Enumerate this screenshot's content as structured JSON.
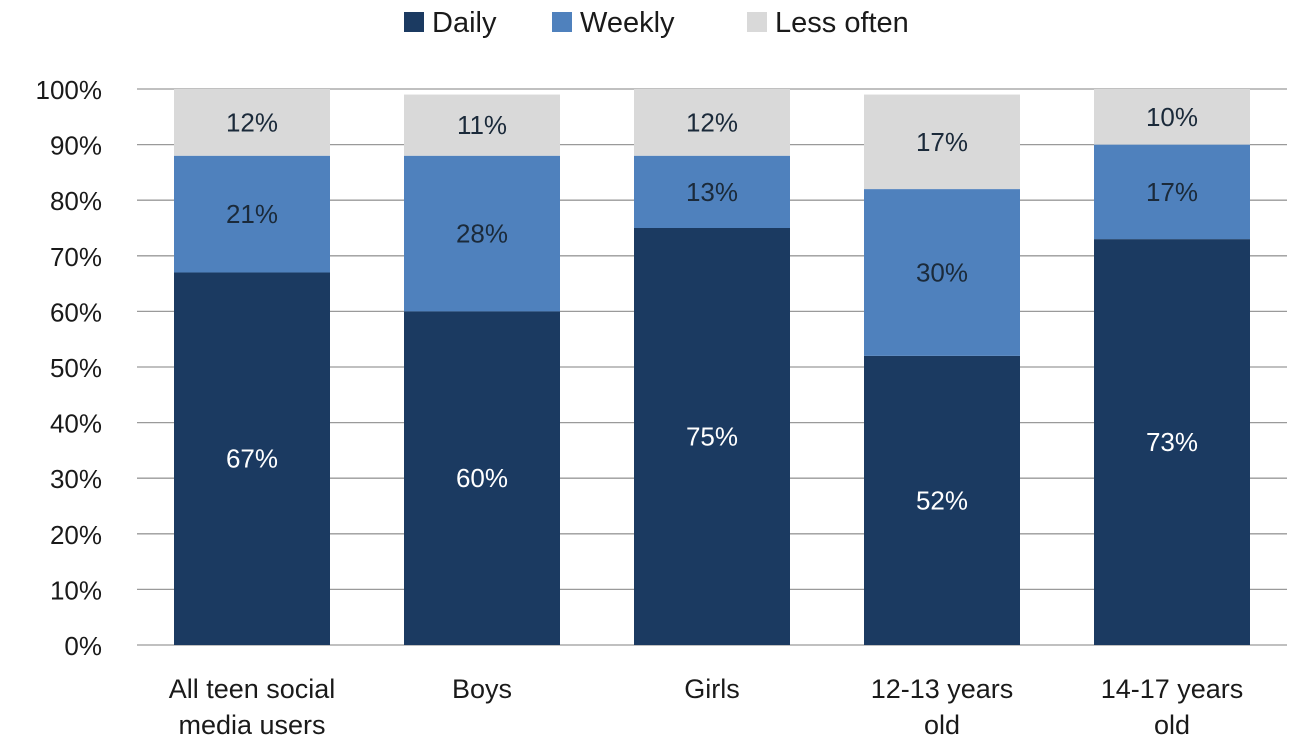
{
  "chart_data": {
    "type": "bar",
    "stacked": true,
    "categories": [
      [
        "All teen social",
        "media users"
      ],
      [
        "Boys"
      ],
      [
        "Girls"
      ],
      [
        "12-13 years",
        "old"
      ],
      [
        "14-17 years",
        "old"
      ]
    ],
    "series": [
      {
        "name": "Daily",
        "color": "#1b3a61",
        "label_color": "#ffffff",
        "values": [
          67,
          60,
          75,
          52,
          73
        ],
        "labels": [
          "67%",
          "60%",
          "75%",
          "52%",
          "73%"
        ]
      },
      {
        "name": "Weekly",
        "color": "#4f81bd",
        "label_color": "#1b2a3a",
        "values": [
          21,
          28,
          13,
          30,
          17
        ],
        "labels": [
          "21%",
          "28%",
          "13%",
          "30%",
          "17%"
        ]
      },
      {
        "name": "Less often",
        "color": "#d9d9d9",
        "label_color": "#1b2a3a",
        "values": [
          12,
          11,
          12,
          17,
          10
        ],
        "labels": [
          "12%",
          "11%",
          "12%",
          "17%",
          "10%"
        ]
      }
    ],
    "yticks": [
      "0%",
      "10%",
      "20%",
      "30%",
      "40%",
      "50%",
      "60%",
      "70%",
      "80%",
      "90%",
      "100%"
    ],
    "ylim": [
      0,
      100
    ],
    "grid": true,
    "legend_position": "top-center",
    "title": "",
    "xlabel": "",
    "ylabel": ""
  }
}
